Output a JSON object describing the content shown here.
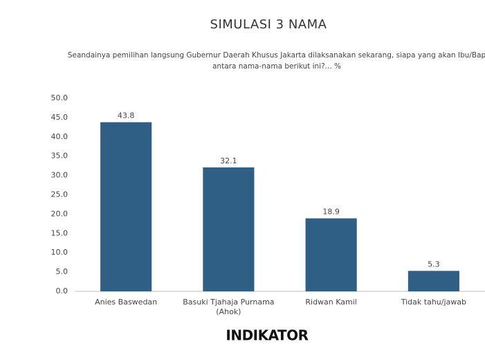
{
  "chart_data": {
    "type": "bar",
    "title": "SIMULASI 3 NAMA",
    "subtitle": [
      "Seandainya pemilihan langsung Gubernur Daerah Khusus Jakarta dilaksanakan sekarang, siapa yang akan Ibu/Bap",
      "antara nama-nama berikut ini?... %"
    ],
    "categories": [
      "Anies Baswedan",
      "Basuki Tjahaja Purnama (Ahok)",
      "Ridwan Kamil",
      "Tidak tahu/jawab"
    ],
    "values": [
      43.8,
      32.1,
      18.9,
      5.3
    ],
    "color": "#2f5f84",
    "ylim": [
      0,
      50
    ],
    "yticks": [
      {
        "value": 0,
        "label": "0.0"
      },
      {
        "value": 5,
        "label": "5.0"
      },
      {
        "value": 10,
        "label": "10.0"
      },
      {
        "value": 15,
        "label": "15.0"
      },
      {
        "value": 20,
        "label": "20.0"
      },
      {
        "value": 25,
        "label": "25.0"
      },
      {
        "value": 30,
        "label": "30.0"
      },
      {
        "value": 35,
        "label": "35.0"
      },
      {
        "value": 40,
        "label": "40.0"
      },
      {
        "value": 45,
        "label": "45.0"
      },
      {
        "value": 50,
        "label": "50.0"
      }
    ],
    "grid": false,
    "logo": "INDIKATOR"
  }
}
